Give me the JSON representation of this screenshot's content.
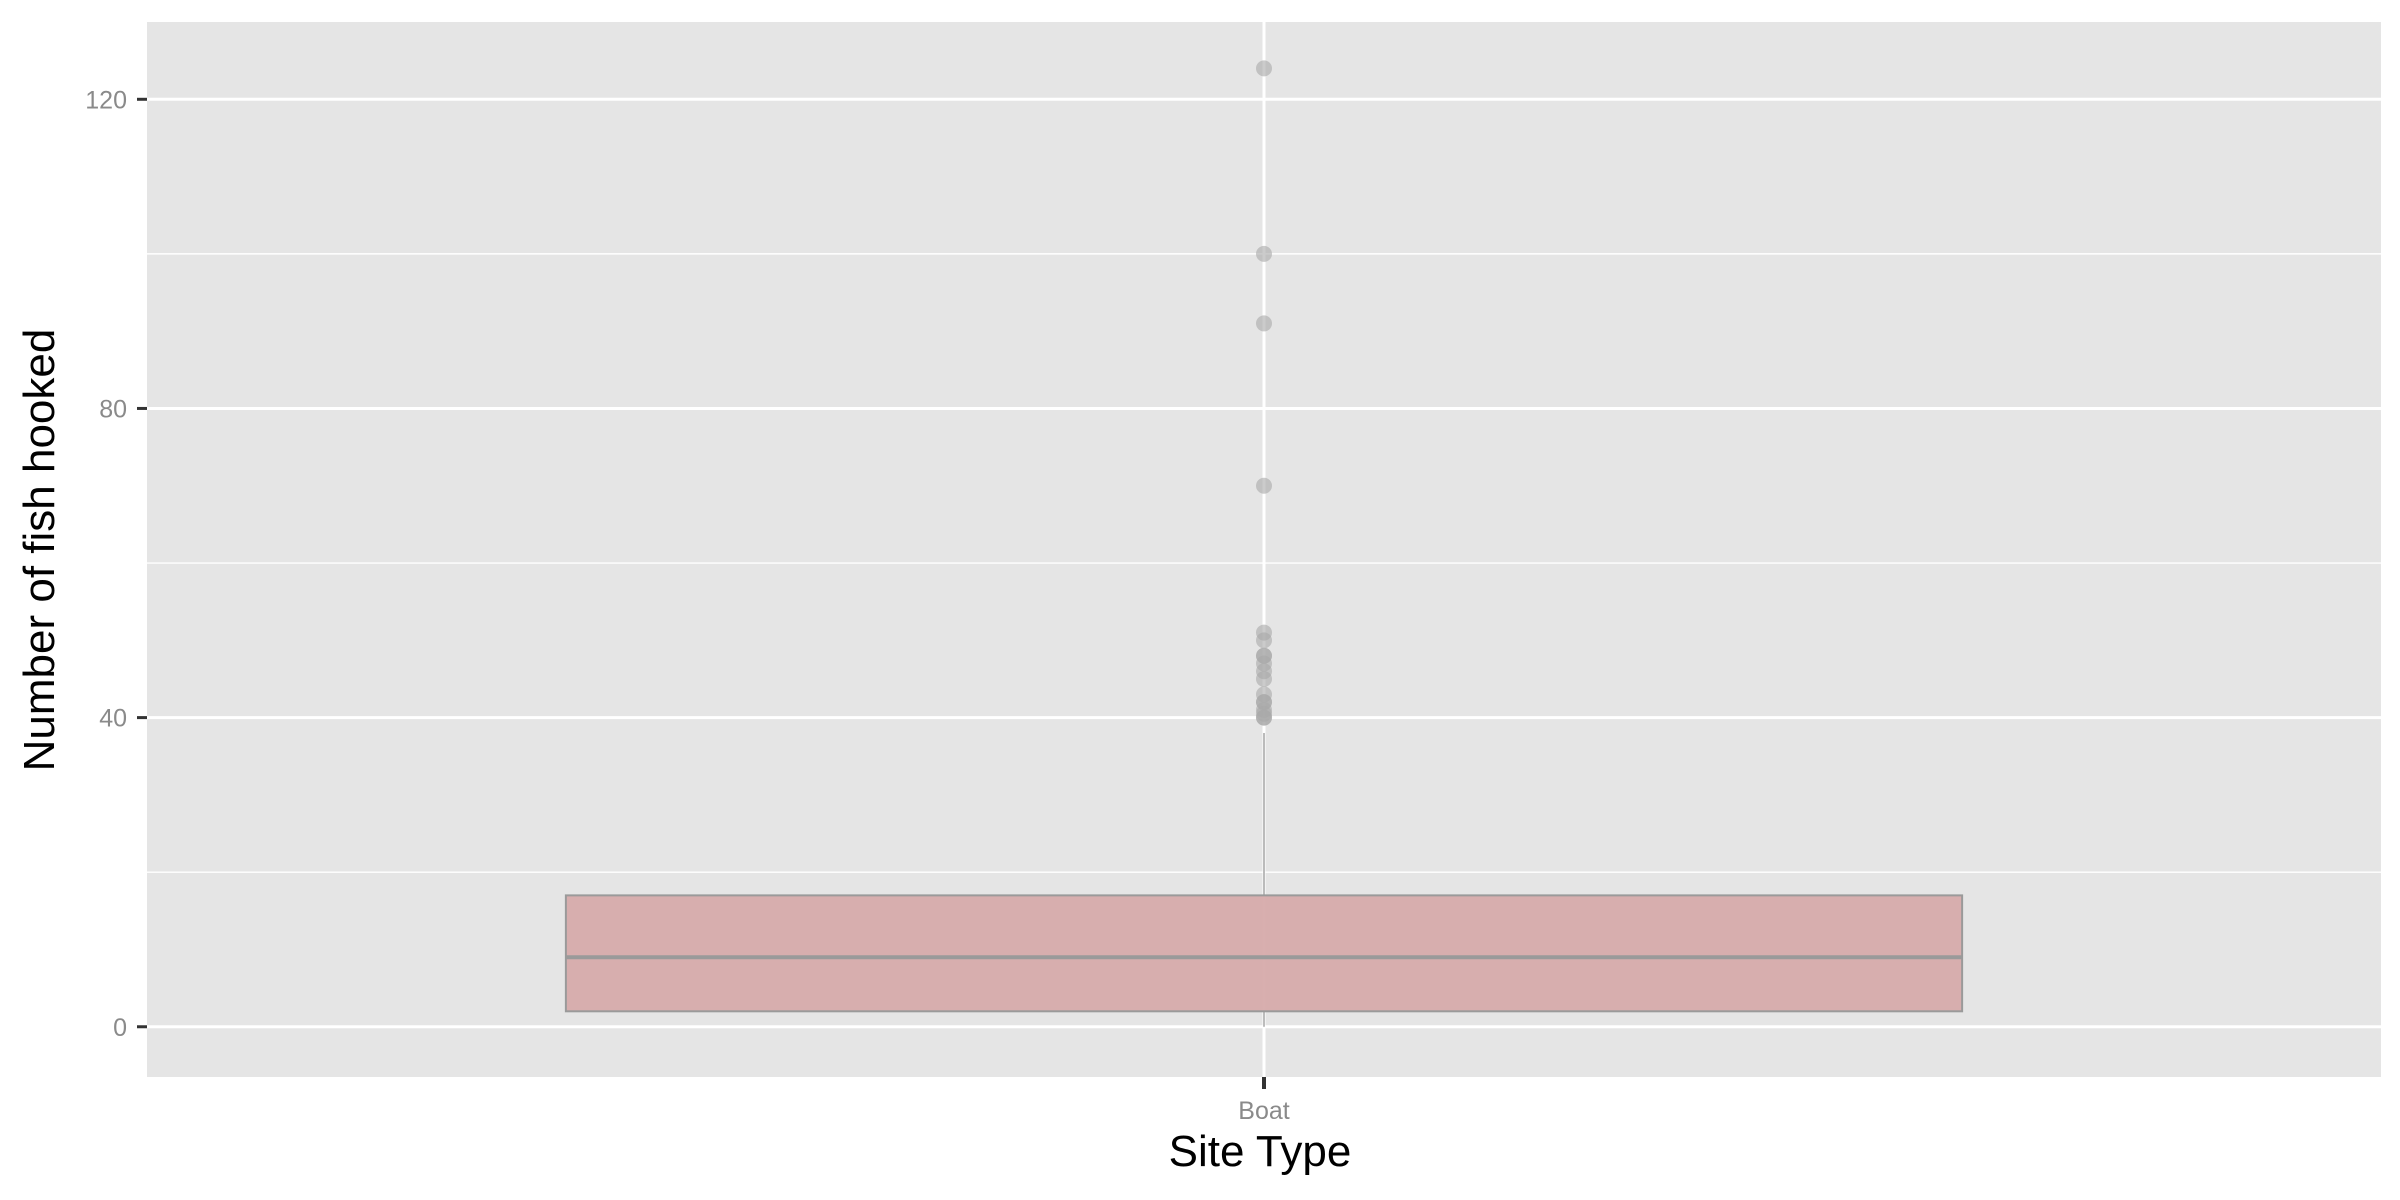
{
  "chart_data": {
    "type": "box",
    "title": "",
    "xlabel": "Site Type",
    "ylabel": "Number of fish hooked",
    "categories": [
      "Boat"
    ],
    "ylim": [
      -6.5,
      130
    ],
    "y_ticks": [
      0,
      40,
      80,
      120
    ],
    "y_tick_labels": [
      "0",
      "40",
      "80",
      "120"
    ],
    "y_minor_gridlines": [
      20,
      60,
      100
    ],
    "x_range": [
      0.4,
      1.6
    ],
    "box_width": 0.75,
    "boxes": [
      {
        "category": "Boat",
        "min": 0,
        "q1": 2,
        "median": 9,
        "q3": 17,
        "max": 38,
        "outliers": [
          40,
          40,
          40.5,
          41,
          42,
          42,
          43,
          45,
          46,
          47,
          48,
          48,
          50,
          51,
          70,
          91,
          100,
          124
        ]
      }
    ],
    "colors": {
      "panel_background": "#e5e5e5",
      "grid": "#ffffff",
      "box_fill": "#d6abab",
      "box_stroke": "#9a9a9a",
      "median": "#9a9a9a",
      "whisker": "#8e8e8e",
      "outlier": "#a9a9a9",
      "tick_label": "#8a8a8a",
      "tick_mark": "#333333",
      "axis_title": "#000000"
    }
  }
}
